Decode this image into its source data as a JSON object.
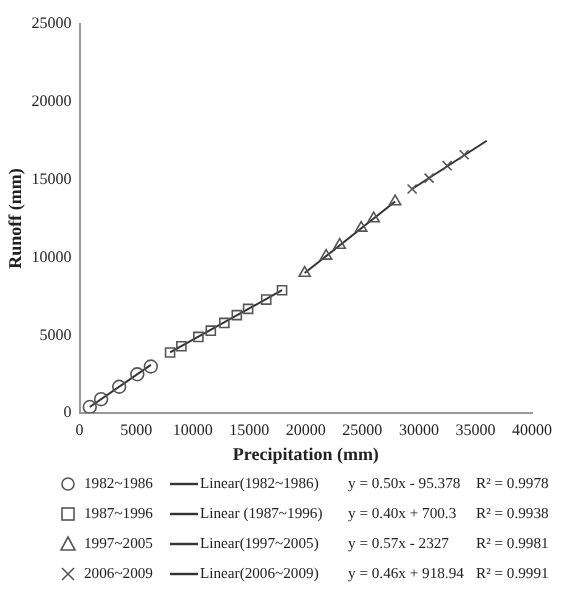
{
  "chart_data": {
    "type": "scatter",
    "xlabel": "Precipitation (mm)",
    "ylabel": "Runoff (mm)",
    "xlim": [
      0,
      40000
    ],
    "ylim": [
      0,
      25000
    ],
    "xticks": [
      0,
      5000,
      10000,
      15000,
      20000,
      25000,
      30000,
      35000,
      40000
    ],
    "yticks": [
      0,
      5000,
      10000,
      15000,
      20000,
      25000
    ],
    "grid": false,
    "legend": "bottom",
    "series": [
      {
        "name": "1982~1986",
        "type": "scatter",
        "marker": "circle",
        "color": "#555555",
        "x": [
          900,
          1900,
          3500,
          5100,
          6300
        ],
        "values": [
          400,
          900,
          1700,
          2500,
          3000
        ]
      },
      {
        "name": "Linear(1982~1986)",
        "type": "line",
        "marker": "none",
        "line_style": "solid",
        "color": "#333333",
        "x": [
          900,
          6300
        ],
        "values": [
          400,
          3100
        ]
      },
      {
        "name": "1987~1996",
        "type": "scatter",
        "marker": "square",
        "color": "#555555",
        "x": [
          8000,
          9000,
          10500,
          11600,
          12800,
          13900,
          14900,
          16500,
          17900
        ],
        "values": [
          3900,
          4300,
          4900,
          5300,
          5800,
          6300,
          6700,
          7300,
          7900
        ]
      },
      {
        "name": "Linear (1987~1996)",
        "type": "line",
        "marker": "none",
        "line_style": "solid",
        "color": "#333333",
        "x": [
          8000,
          17900
        ],
        "values": [
          3900,
          7900
        ]
      },
      {
        "name": "1997~2005",
        "type": "scatter",
        "marker": "triangle",
        "color": "#555555",
        "x": [
          19900,
          21800,
          23000,
          24900,
          26000,
          27900
        ],
        "values": [
          9000,
          10100,
          10800,
          11900,
          12500,
          13600
        ]
      },
      {
        "name": "Linear(1997~2005)",
        "type": "line",
        "marker": "none",
        "line_style": "solid",
        "color": "#333333",
        "x": [
          19900,
          27900
        ],
        "values": [
          9000,
          13600
        ]
      },
      {
        "name": "2006~2009",
        "type": "scatter",
        "marker": "cross",
        "color": "#555555",
        "x": [
          29400,
          30900,
          32500,
          34000
        ],
        "values": [
          14400,
          15100,
          15900,
          16600
        ]
      },
      {
        "name": "Linear(2006~2009)",
        "type": "line",
        "marker": "none",
        "line_style": "solid",
        "color": "#333333",
        "x": [
          29400,
          36000
        ],
        "values": [
          14400,
          17500
        ]
      }
    ],
    "annotations": [
      "y = 0.50x - 95.378",
      "R² = 0.9978",
      "y = 0.40x + 700.3",
      "R² = 0.9938",
      "y = 0.57x - 2327",
      "R² = 0.9981",
      "y = 0.46x + 918.94",
      "R² = 0.9991"
    ]
  }
}
